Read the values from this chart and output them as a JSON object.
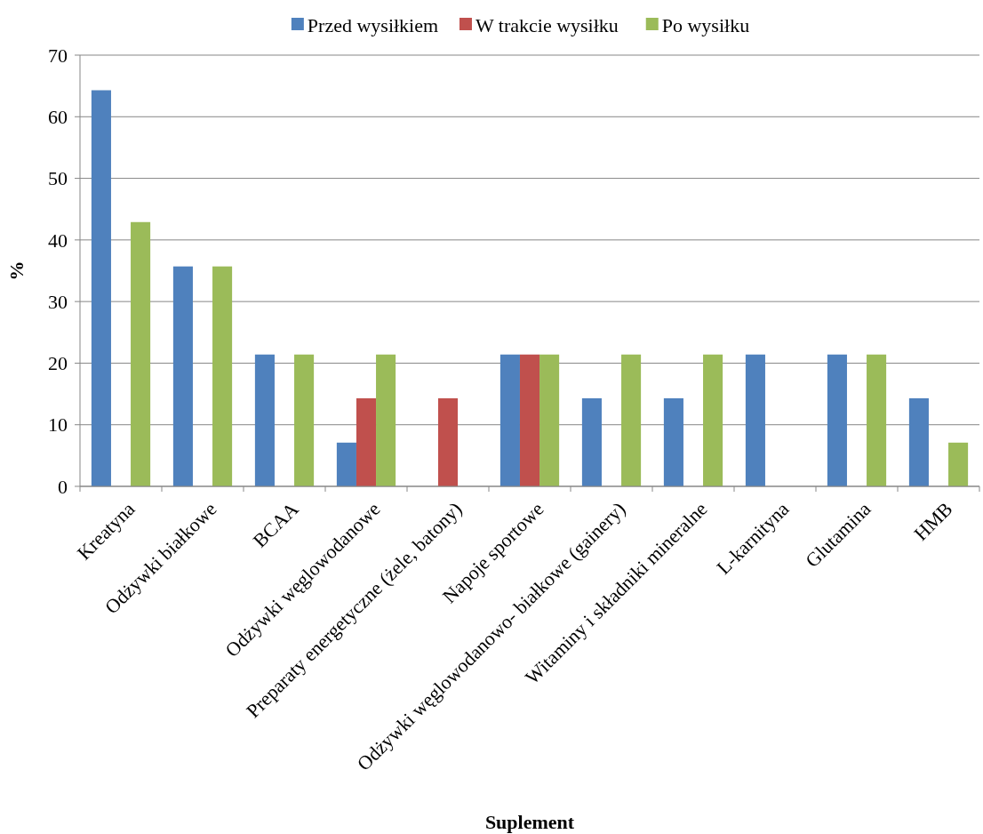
{
  "chart_data": {
    "type": "bar",
    "xlabel": "Suplement",
    "ylabel": "%",
    "categories": [
      "Kreatyna",
      "Odżywki białkowe",
      "BCAA",
      "Odżywki węglowodanowe",
      "Preparaty energetyczne (żele, batony)",
      "Napoje sportowe",
      "Odżywki węglowodanowo- białkowe (gainery)",
      "Witaminy i składniki mineralne",
      "L-karnityna",
      "Glutamina",
      "HMB"
    ],
    "series": [
      {
        "name": "Przed wysiłkiem",
        "color": "#4f81bd",
        "values": [
          64.3,
          35.7,
          21.4,
          7.1,
          0,
          21.4,
          14.3,
          14.3,
          21.4,
          21.4,
          14.3
        ]
      },
      {
        "name": "W trakcie wysiłku",
        "color": "#c0504d",
        "values": [
          0,
          0,
          0,
          14.3,
          14.3,
          21.4,
          0,
          0,
          0,
          0,
          0
        ]
      },
      {
        "name": "Po wysiłku",
        "color": "#9bbb59",
        "values": [
          42.9,
          35.7,
          21.4,
          21.4,
          0,
          21.4,
          21.4,
          21.4,
          0,
          21.4,
          7.1
        ]
      }
    ],
    "ylim": [
      0,
      70
    ],
    "yticks": [
      0,
      10,
      20,
      30,
      40,
      50,
      60,
      70
    ],
    "grid": "y",
    "legend": "top"
  }
}
